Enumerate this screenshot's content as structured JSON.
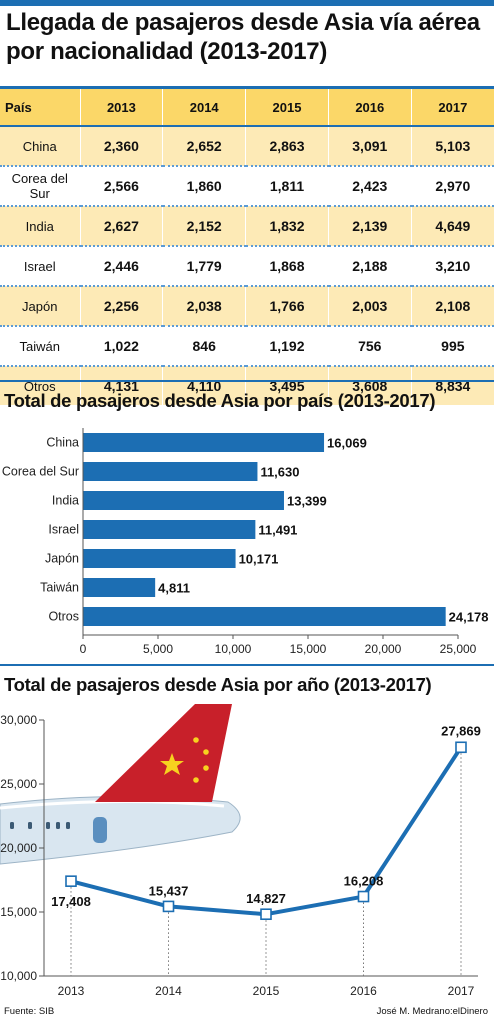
{
  "title": "Llegada de pasajeros desde Asia vía aérea por nacionalidad (2013-2017)",
  "table": {
    "headers": [
      "País",
      "2013",
      "2014",
      "2015",
      "2016",
      "2017"
    ],
    "rows": [
      [
        "China",
        "2,360",
        "2,652",
        "2,863",
        "3,091",
        "5,103"
      ],
      [
        "Corea del Sur",
        "2,566",
        "1,860",
        "1,811",
        "2,423",
        "2,970"
      ],
      [
        "India",
        "2,627",
        "2,152",
        "1,832",
        "2,139",
        "4,649"
      ],
      [
        "Israel",
        "2,446",
        "1,779",
        "1,868",
        "2,188",
        "3,210"
      ],
      [
        "Japón",
        "2,256",
        "2,038",
        "1,766",
        "2,003",
        "2,108"
      ],
      [
        "Taiwán",
        "1,022",
        "846",
        "1,192",
        "756",
        "995"
      ],
      [
        "Otros",
        "4,131",
        "4,110",
        "3,495",
        "3,608",
        "8,834"
      ]
    ]
  },
  "chart_data": [
    {
      "type": "bar",
      "orientation": "horizontal",
      "title": "Total de pasajeros desde Asia por país (2013-2017)",
      "categories": [
        "China",
        "Corea del Sur",
        "India",
        "Israel",
        "Japón",
        "Taiwán",
        "Otros"
      ],
      "values": [
        16069,
        11630,
        13399,
        11491,
        10171,
        4811,
        24178
      ],
      "value_labels": [
        "16,069",
        "11,630",
        "13,399",
        "11,491",
        "10,171",
        "4,811",
        "24,178"
      ],
      "xlim": [
        0,
        25000
      ],
      "xticks": [
        0,
        5000,
        10000,
        15000,
        20000,
        25000
      ],
      "xtick_labels": [
        "0",
        "5,000",
        "10,000",
        "15,000",
        "20,000",
        "25,000"
      ],
      "color": "#1c6eb3"
    },
    {
      "type": "line",
      "title": "Total de pasajeros desde Asia por año (2013-2017)",
      "x": [
        "2013",
        "2014",
        "2015",
        "2016",
        "2017"
      ],
      "values": [
        17408,
        15437,
        14827,
        16208,
        27869
      ],
      "value_labels": [
        "17,408",
        "15,437",
        "14,827",
        "16,208",
        "27,869"
      ],
      "ylim": [
        10000,
        30000
      ],
      "yticks": [
        10000,
        15000,
        20000,
        25000,
        30000
      ],
      "ytick_labels": [
        "10,000",
        "15,000",
        "20,000",
        "25,000",
        "30,000"
      ],
      "color": "#1c6eb3"
    }
  ],
  "footer": {
    "source": "Fuente: SIB",
    "credit": "José M. Medrano:elDinero"
  }
}
